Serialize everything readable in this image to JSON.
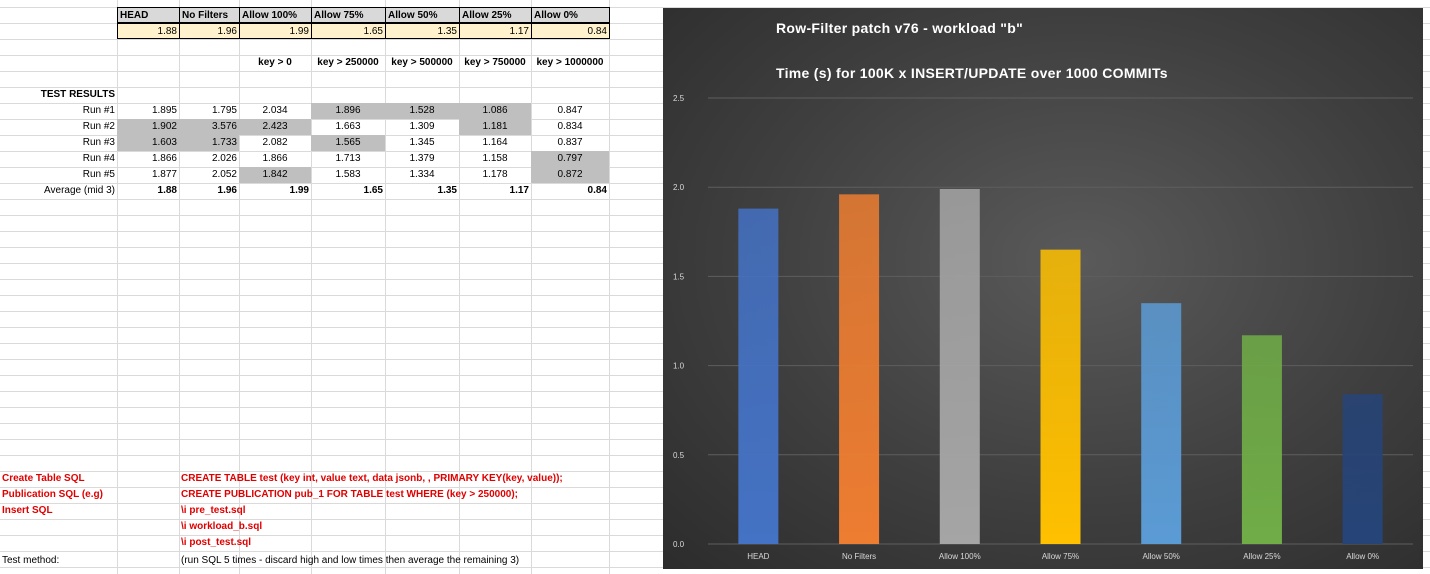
{
  "summary": {
    "headers": [
      "HEAD",
      "No Filters",
      "Allow 100%",
      "Allow 75%",
      "Allow 50%",
      "Allow 25%",
      "Allow 0%"
    ],
    "values": [
      "1.88",
      "1.96",
      "1.99",
      "1.65",
      "1.35",
      "1.17",
      "0.84"
    ]
  },
  "keys": [
    "key > 0",
    "key > 250000",
    "key > 500000",
    "key > 750000",
    "key > 1000000"
  ],
  "results": {
    "title": "TEST RESULTS",
    "rows": [
      {
        "label": "Run #1",
        "values": [
          "1.895",
          "1.795",
          "2.034",
          "1.896",
          "1.528",
          "1.086",
          "0.847"
        ]
      },
      {
        "label": "Run #2",
        "values": [
          "1.902",
          "3.576",
          "2.423",
          "1.663",
          "1.309",
          "1.181",
          "0.834"
        ]
      },
      {
        "label": "Run #3",
        "values": [
          "1.603",
          "1.733",
          "2.082",
          "1.565",
          "1.345",
          "1.164",
          "0.837"
        ]
      },
      {
        "label": "Run #4",
        "values": [
          "1.866",
          "2.026",
          "1.866",
          "1.713",
          "1.379",
          "1.158",
          "0.797"
        ]
      },
      {
        "label": "Run #5",
        "values": [
          "1.877",
          "2.052",
          "1.842",
          "1.583",
          "1.334",
          "1.178",
          "0.872"
        ]
      }
    ],
    "average_label": "Average (mid 3)",
    "average": [
      "1.88",
      "1.96",
      "1.99",
      "1.65",
      "1.35",
      "1.17",
      "0.84"
    ]
  },
  "notes": {
    "create_label": "Create Table SQL",
    "create_sql": "CREATE TABLE test (key int, value text, data jsonb, , PRIMARY KEY(key, value));",
    "pub_label": "Publication SQL (e.g)",
    "pub_sql": "CREATE PUBLICATION pub_1 FOR TABLE test WHERE (key > 250000);",
    "insert_label": "Insert SQL",
    "insert_lines": [
      "\\i pre_test.sql",
      "\\i workload_b.sql",
      "\\i post_test.sql"
    ],
    "method_label": "Test method:",
    "method_text": "(run SQL 5 times - discard high and low times then average the remaining 3)"
  },
  "chart_data": {
    "type": "bar",
    "title": "Row-Filter patch v76 - workload \"b\"",
    "subtitle": "Time (s) for 100K x INSERT/UPDATE over 1000 COMMITs",
    "categories": [
      "HEAD",
      "No Filters",
      "Allow 100%",
      "Allow 75%",
      "Allow 50%",
      "Allow 25%",
      "Allow 0%"
    ],
    "values": [
      1.88,
      1.96,
      1.99,
      1.65,
      1.35,
      1.17,
      0.84
    ],
    "yticks": [
      "0.0",
      "0.5",
      "1.0",
      "1.5",
      "2.0",
      "2.5"
    ],
    "ylim": [
      0,
      2.5
    ],
    "grid": true,
    "colors": [
      "#4472c4",
      "#ed7d31",
      "#a5a5a5",
      "#ffc000",
      "#5b9bd5",
      "#70ad47",
      "#264478"
    ]
  }
}
